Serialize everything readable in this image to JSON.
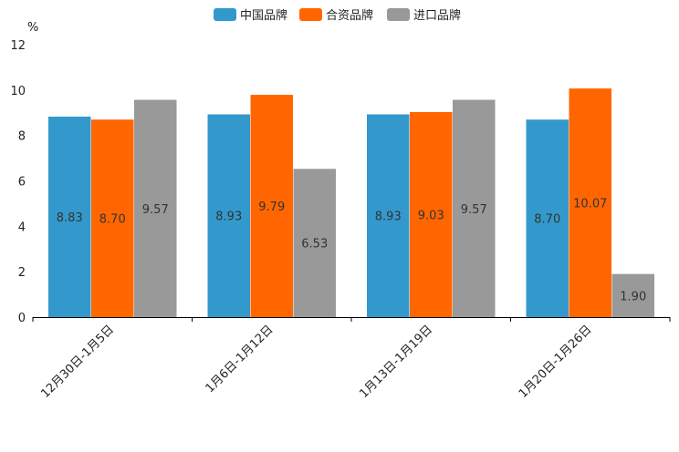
{
  "chart_data": {
    "type": "bar",
    "title": "",
    "xlabel": "",
    "ylabel": "%",
    "ylim": [
      0,
      12
    ],
    "yticks": [
      "0",
      "2",
      "4",
      "6",
      "8",
      "10",
      "12"
    ],
    "grid": false,
    "legend_position": "top-center",
    "categories": [
      "12月30日-1月5日",
      "1月6日-1月12日",
      "1月13日-1月19日",
      "1月20日-1月26日"
    ],
    "series": [
      {
        "name": "中国品牌",
        "color": "#3399CC",
        "values": [
          8.83,
          8.93,
          8.93,
          8.7
        ],
        "labels": [
          "8.83",
          "8.93",
          "8.93",
          "8.70"
        ]
      },
      {
        "name": "合资品牌",
        "color": "#FF6600",
        "values": [
          8.7,
          9.79,
          9.03,
          10.07
        ],
        "labels": [
          "8.70",
          "9.79",
          "9.03",
          "10.07"
        ]
      },
      {
        "name": "进口品牌",
        "color": "#999999",
        "values": [
          9.57,
          6.53,
          9.57,
          1.9
        ],
        "labels": [
          "9.57",
          "6.53",
          "9.57",
          "1.90"
        ]
      }
    ]
  }
}
